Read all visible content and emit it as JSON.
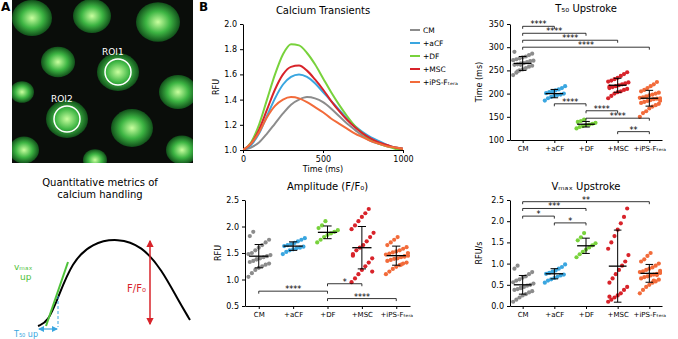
{
  "figure": {
    "panel_labels": [
      "A",
      "B"
    ],
    "roi_labels": [
      "ROI1",
      "ROI2"
    ],
    "schematic_title": [
      "Quantitative metrics of",
      "calcium handling"
    ],
    "schematic_labels": {
      "vmax": [
        "vₘₐₓ",
        "up"
      ],
      "t50": "T₅₀ up",
      "amplitude": "F/F₀"
    }
  },
  "chart_data": [
    {
      "type": "line",
      "title": "Calcium Transients",
      "xlabel": "Time (ms)",
      "ylabel": "RFU",
      "x": [
        0,
        50,
        100,
        150,
        200,
        250,
        300,
        350,
        400,
        450,
        500,
        550,
        600,
        650,
        700,
        750,
        800,
        850,
        900,
        950,
        1000
      ],
      "series": [
        {
          "name": "CM",
          "color": "#8c8c8c",
          "values": [
            1.0,
            1.02,
            1.06,
            1.13,
            1.21,
            1.29,
            1.36,
            1.4,
            1.42,
            1.41,
            1.38,
            1.33,
            1.27,
            1.21,
            1.16,
            1.11,
            1.07,
            1.05,
            1.03,
            1.02,
            1.01
          ]
        },
        {
          "name": "+aCF",
          "color": "#3aa6e0",
          "values": [
            1.0,
            1.04,
            1.13,
            1.27,
            1.41,
            1.52,
            1.58,
            1.6,
            1.58,
            1.53,
            1.46,
            1.39,
            1.32,
            1.25,
            1.19,
            1.14,
            1.1,
            1.07,
            1.04,
            1.02,
            1.01
          ]
        },
        {
          "name": "+DF",
          "color": "#78d23c",
          "values": [
            1.0,
            1.06,
            1.2,
            1.4,
            1.6,
            1.76,
            1.84,
            1.83,
            1.77,
            1.68,
            1.57,
            1.46,
            1.36,
            1.27,
            1.19,
            1.13,
            1.08,
            1.05,
            1.03,
            1.01,
            1.0
          ]
        },
        {
          "name": "+MSC",
          "color": "#d8232a",
          "values": [
            1.0,
            1.05,
            1.16,
            1.32,
            1.48,
            1.6,
            1.66,
            1.67,
            1.63,
            1.56,
            1.48,
            1.39,
            1.31,
            1.24,
            1.18,
            1.13,
            1.09,
            1.06,
            1.04,
            1.02,
            1.01
          ]
        },
        {
          "name": "+iPS-Fₜₑᵣₐ",
          "color": "#f26b3a",
          "values": [
            1.0,
            1.05,
            1.14,
            1.26,
            1.35,
            1.4,
            1.42,
            1.41,
            1.38,
            1.34,
            1.3,
            1.25,
            1.21,
            1.17,
            1.13,
            1.1,
            1.07,
            1.05,
            1.03,
            1.02,
            1.01
          ]
        }
      ],
      "xlim": [
        0,
        1000
      ],
      "xticks": [
        0,
        500,
        1000
      ],
      "ylim": [
        1.0,
        2.0
      ],
      "yticks": [
        {
          "value": 1.0,
          "label": "1.0"
        },
        1.2,
        1.4,
        1.6,
        1.8,
        {
          "value": 2.0,
          "label": "2.0"
        }
      ],
      "legend": "right"
    },
    {
      "type": "dot",
      "title": "T₅₀ Upstroke",
      "ylabel": "Time (ms)",
      "categories": [
        "CM",
        "+aCF",
        "+DF",
        "+MSC",
        "+iPS-Fₜₑᵣₐ"
      ],
      "colors": [
        "#8c8c8c",
        "#3aa6e0",
        "#78d23c",
        "#d8232a",
        "#f26b3a"
      ],
      "values": [
        [
          240,
          245,
          250,
          252,
          255,
          258,
          260,
          262,
          263,
          265,
          266,
          268,
          270,
          271,
          272,
          274,
          276,
          278,
          280,
          283,
          286,
          290,
          248,
          262
        ],
        [
          185,
          190,
          193,
          195,
          197,
          198,
          200,
          201,
          203,
          205,
          207,
          209,
          212,
          216
        ],
        [
          125,
          128,
          130,
          132,
          133,
          135,
          137,
          139,
          141,
          144
        ],
        [
          190,
          195,
          200,
          203,
          205,
          208,
          210,
          212,
          214,
          216,
          218,
          220,
          222,
          224,
          226,
          228,
          231,
          234,
          238,
          242,
          246,
          215
        ],
        [
          150,
          158,
          162,
          168,
          172,
          175,
          178,
          180,
          182,
          184,
          186,
          188,
          189,
          190,
          191,
          192,
          194,
          196,
          198,
          200,
          202,
          205,
          208,
          212,
          216,
          220,
          225,
          185
        ]
      ],
      "mean": [
        265,
        200,
        134,
        218,
        190
      ],
      "error": [
        15,
        9,
        6,
        15,
        17
      ],
      "ylim": [
        100,
        350
      ],
      "yticks": [
        100,
        150,
        200,
        250,
        300,
        350
      ],
      "significance": [
        {
          "from": "CM",
          "to": "+aCF",
          "y": 345,
          "label": "****"
        },
        {
          "from": "CM",
          "to": "+DF",
          "y": 330,
          "label": "****"
        },
        {
          "from": "CM",
          "to": "+MSC",
          "y": 315,
          "label": "****"
        },
        {
          "from": "CM",
          "to": "+iPS-Fₜₑᵣₐ",
          "y": 300,
          "label": "****"
        },
        {
          "from": "+aCF",
          "to": "+DF",
          "y": 178,
          "label": "****"
        },
        {
          "from": "+DF",
          "to": "+MSC",
          "y": 163,
          "label": "****"
        },
        {
          "from": "+DF",
          "to": "+iPS-Fₜₑᵣₐ",
          "y": 147,
          "label": "****"
        },
        {
          "from": "+MSC",
          "to": "+iPS-Fₜₑᵣₐ",
          "y": 118,
          "label": "**"
        }
      ]
    },
    {
      "type": "dot",
      "title": "Amplitude (F/F₀)",
      "ylabel": "RFU",
      "categories": [
        "CM",
        "+aCF",
        "+DF",
        "+MSC",
        "+iPS-Fₜₑᵣₐ"
      ],
      "colors": [
        "#8c8c8c",
        "#3aa6e0",
        "#78d23c",
        "#d8232a",
        "#f26b3a"
      ],
      "values": [
        [
          1.05,
          1.12,
          1.18,
          1.22,
          1.25,
          1.28,
          1.3,
          1.33,
          1.35,
          1.38,
          1.4,
          1.42,
          1.44,
          1.46,
          1.48,
          1.5,
          1.55,
          1.6,
          1.65,
          1.7,
          1.75,
          1.82,
          1.9,
          1.38
        ],
        [
          1.48,
          1.52,
          1.55,
          1.57,
          1.59,
          1.6,
          1.62,
          1.63,
          1.65,
          1.67,
          1.69,
          1.72,
          1.75,
          1.78
        ],
        [
          1.7,
          1.75,
          1.8,
          1.84,
          1.87,
          1.9,
          1.93,
          1.97,
          2.02,
          2.1
        ],
        [
          0.95,
          1.02,
          1.1,
          1.18,
          1.25,
          1.32,
          1.4,
          1.48,
          1.55,
          1.6,
          1.65,
          1.72,
          1.8,
          1.88,
          1.95,
          2.02,
          2.1,
          2.18,
          2.25,
          2.33,
          1.15,
          1.45
        ],
        [
          1.1,
          1.15,
          1.2,
          1.24,
          1.27,
          1.3,
          1.32,
          1.35,
          1.37,
          1.39,
          1.4,
          1.42,
          1.44,
          1.45,
          1.47,
          1.49,
          1.51,
          1.53,
          1.55,
          1.58,
          1.61,
          1.65,
          1.7,
          1.75,
          1.8,
          1.28,
          1.43,
          1.5
        ]
      ],
      "mean": [
        1.44,
        1.63,
        1.89,
        1.6,
        1.45
      ],
      "error": [
        0.22,
        0.08,
        0.12,
        0.4,
        0.18
      ],
      "ylim": [
        0.5,
        2.5
      ],
      "yticks": [
        0.5,
        {
          "value": 1.0,
          "label": "1.0"
        },
        1.5,
        {
          "value": 2.0,
          "label": "2.0"
        },
        2.5
      ],
      "significance": [
        {
          "from": "+DF",
          "to": "+MSC",
          "y": 0.92,
          "label": "*"
        },
        {
          "from": "CM",
          "to": "+DF",
          "y": 0.78,
          "label": "****"
        },
        {
          "from": "+DF",
          "to": "+iPS-Fₜₑᵣₐ",
          "y": 0.64,
          "label": "****"
        }
      ]
    },
    {
      "type": "dot",
      "title": "Vₘₐₓ Upstroke",
      "ylabel": "RFU/s",
      "categories": [
        "CM",
        "+aCF",
        "+DF",
        "+MSC",
        "+iPS-Fₜₑᵣₐ"
      ],
      "colors": [
        "#8c8c8c",
        "#3aa6e0",
        "#78d23c",
        "#d8232a",
        "#f26b3a"
      ],
      "values": [
        [
          0.1,
          0.15,
          0.2,
          0.25,
          0.28,
          0.32,
          0.35,
          0.38,
          0.4,
          0.43,
          0.45,
          0.48,
          0.5,
          0.53,
          0.56,
          0.6,
          0.63,
          0.67,
          0.7,
          0.75,
          0.8,
          0.88,
          0.95,
          0.42
        ],
        [
          0.55,
          0.6,
          0.63,
          0.66,
          0.69,
          0.72,
          0.74,
          0.76,
          0.78,
          0.81,
          0.84,
          0.88,
          0.92,
          0.98
        ],
        [
          1.15,
          1.22,
          1.28,
          1.33,
          1.38,
          1.43,
          1.48,
          1.55,
          1.62,
          1.72
        ],
        [
          0.1,
          0.15,
          0.2,
          0.25,
          0.3,
          0.38,
          0.45,
          0.55,
          0.65,
          0.75,
          0.85,
          0.95,
          1.05,
          1.2,
          1.35,
          1.5,
          1.65,
          1.8,
          1.95,
          2.1,
          2.3,
          0.22
        ],
        [
          0.3,
          0.38,
          0.45,
          0.5,
          0.55,
          0.58,
          0.62,
          0.65,
          0.68,
          0.7,
          0.72,
          0.74,
          0.76,
          0.78,
          0.8,
          0.82,
          0.85,
          0.88,
          0.91,
          0.95,
          1.0,
          1.05,
          1.1,
          1.18,
          1.25,
          0.6,
          0.73,
          0.83
        ]
      ],
      "mean": [
        0.5,
        0.76,
        1.42,
        0.94,
        0.77
      ],
      "error": [
        0.22,
        0.12,
        0.18,
        0.85,
        0.21
      ],
      "ylim": [
        0.0,
        2.5
      ],
      "yticks": [
        {
          "value": 0.0,
          "label": "0.0"
        },
        0.5,
        {
          "value": 1.0,
          "label": "1.0"
        },
        1.5,
        {
          "value": 2.0,
          "label": "2.0"
        },
        2.5
      ],
      "significance": [
        {
          "from": "CM",
          "to": "+iPS-Fₜₑᵣₐ",
          "y": 2.46,
          "label": "**"
        },
        {
          "from": "CM",
          "to": "+DF",
          "y": 2.3,
          "label": "***"
        },
        {
          "from": "CM",
          "to": "+aCF",
          "y": 2.12,
          "label": "*"
        },
        {
          "from": "+aCF",
          "to": "+DF",
          "y": 1.96,
          "label": "*"
        }
      ]
    }
  ]
}
